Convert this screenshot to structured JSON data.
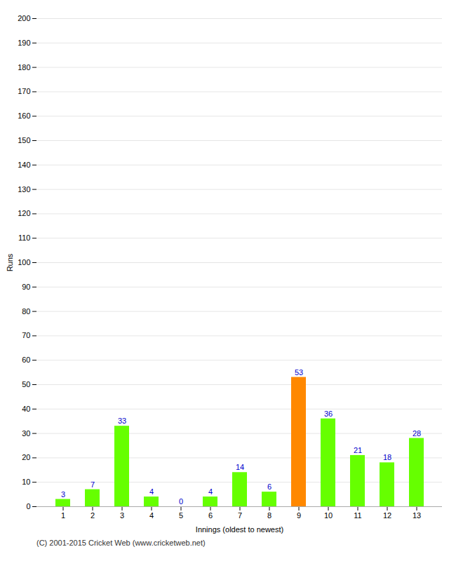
{
  "chart_data": {
    "type": "bar",
    "categories": [
      1,
      2,
      3,
      4,
      5,
      6,
      7,
      8,
      9,
      10,
      11,
      12,
      13
    ],
    "values": [
      3,
      7,
      33,
      4,
      0,
      4,
      14,
      6,
      53,
      36,
      21,
      18,
      28
    ],
    "colors": [
      "#66ff00",
      "#66ff00",
      "#66ff00",
      "#66ff00",
      "#66ff00",
      "#66ff00",
      "#66ff00",
      "#66ff00",
      "#ff8800",
      "#66ff00",
      "#66ff00",
      "#66ff00",
      "#66ff00"
    ],
    "xlabel": "Innings (oldest to newest)",
    "ylabel": "Runs",
    "ylim": [
      0,
      200
    ],
    "yticks": [
      0,
      10,
      20,
      30,
      40,
      50,
      60,
      70,
      80,
      90,
      100,
      110,
      120,
      130,
      140,
      150,
      160,
      170,
      180,
      190,
      200
    ],
    "grid": true,
    "data_labels": true,
    "caption": "(C) 2001-2015 Cricket Web (www.cricketweb.net)"
  }
}
